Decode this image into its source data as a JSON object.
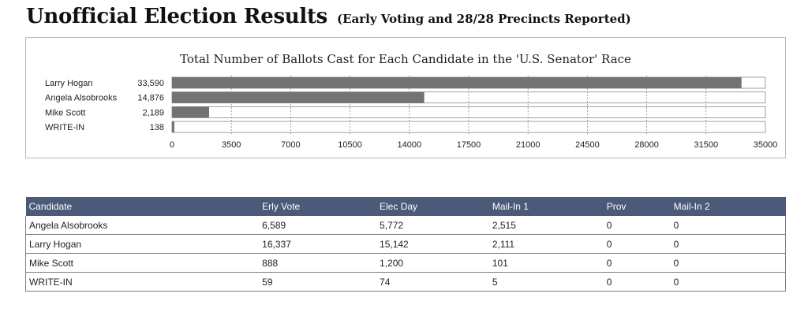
{
  "header": {
    "title": "Unofficial Election Results",
    "subtitle": "(Early Voting and 28/28 Precincts Reported)"
  },
  "colors": {
    "bar": "#737373",
    "header_bg": "#4a5a78"
  },
  "chart_data": {
    "type": "bar",
    "orientation": "horizontal",
    "title": "Total Number of Ballots Cast for Each Candidate in the 'U.S. Senator' Race",
    "categories": [
      "Larry Hogan",
      "Angela Alsobrooks",
      "Mike Scott",
      "WRITE-IN"
    ],
    "values": [
      33590,
      14876,
      2189,
      138
    ],
    "value_labels": [
      "33,590",
      "14,876",
      "2,189",
      "138"
    ],
    "xlim": [
      0,
      35000
    ],
    "xticks": [
      0,
      3500,
      7000,
      10500,
      14000,
      17500,
      21000,
      24500,
      28000,
      31500,
      35000
    ],
    "grid": true
  },
  "table": {
    "columns": [
      "Candidate",
      "Erly Vote",
      "Elec Day",
      "Mail-In 1",
      "Prov",
      "Mail-In 2"
    ],
    "rows": [
      [
        "Angela Alsobrooks",
        "6,589",
        "5,772",
        "2,515",
        "0",
        "0"
      ],
      [
        "Larry Hogan",
        "16,337",
        "15,142",
        "2,111",
        "0",
        "0"
      ],
      [
        "Mike Scott",
        "888",
        "1,200",
        "101",
        "0",
        "0"
      ],
      [
        "WRITE-IN",
        "59",
        "74",
        "5",
        "0",
        "0"
      ]
    ]
  }
}
